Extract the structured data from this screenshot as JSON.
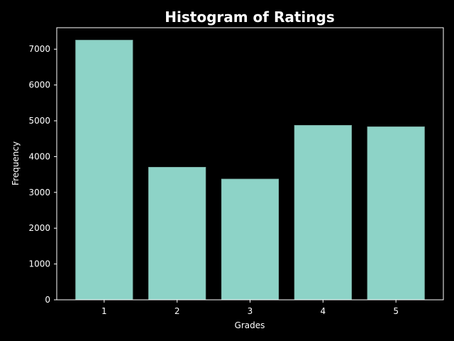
{
  "chart_data": {
    "type": "bar",
    "title": "Histogram of Ratings",
    "xlabel": "Grades",
    "ylabel": "Frequency",
    "categories": [
      "1",
      "2",
      "3",
      "4",
      "5"
    ],
    "values": [
      7250,
      3700,
      3370,
      4870,
      4830
    ],
    "ylim": [
      0,
      7600
    ],
    "yticks": [
      0,
      1000,
      2000,
      3000,
      4000,
      5000,
      6000,
      7000
    ],
    "grid": false,
    "colors": {
      "background": "#000000",
      "bar_fill": "#8dd3c7",
      "bar_edge": "#7fb8ad",
      "axis": "#ffffff",
      "text": "#ffffff"
    }
  }
}
